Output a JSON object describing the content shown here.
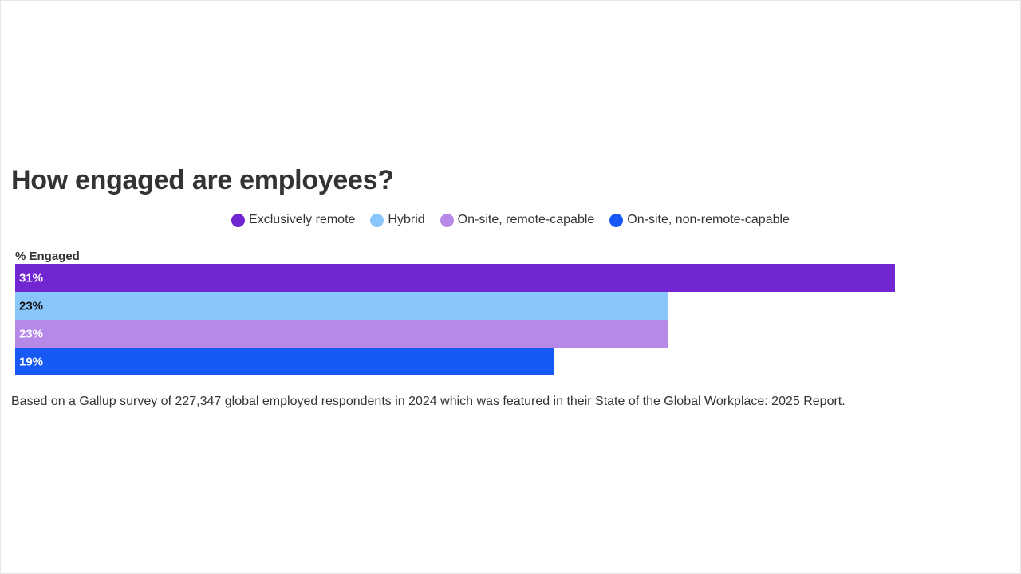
{
  "chart_data": {
    "type": "bar",
    "orientation": "horizontal",
    "title": "How engaged are employees?",
    "ylabel": "% Engaged",
    "categories": [
      "Exclusively remote",
      "Hybrid",
      "On-site, remote-capable",
      "On-site, non-remote-capable"
    ],
    "values": [
      31,
      23,
      23,
      19
    ],
    "value_labels": [
      "31%",
      "23%",
      "23%",
      "19%"
    ],
    "colors": [
      "#7226d1",
      "#88c6fc",
      "#b688e8",
      "#1659f5"
    ],
    "label_colors": [
      "#ffffff",
      "#111111",
      "#ffffff",
      "#ffffff"
    ],
    "xlim": [
      0,
      31
    ],
    "legend": {
      "position": "top-center",
      "entries": [
        {
          "label": "Exclusively remote",
          "color": "#7226d1"
        },
        {
          "label": "Hybrid",
          "color": "#88c6fc"
        },
        {
          "label": "On-site, remote-capable",
          "color": "#b688e8"
        },
        {
          "label": "On-site, non-remote-capable",
          "color": "#1659f5"
        }
      ]
    },
    "grid": false
  },
  "caption": "Based on a Gallup survey of 227,347 global employed respondents in 2024 which was featured in their State of the Global Workplace: 2025 Report."
}
